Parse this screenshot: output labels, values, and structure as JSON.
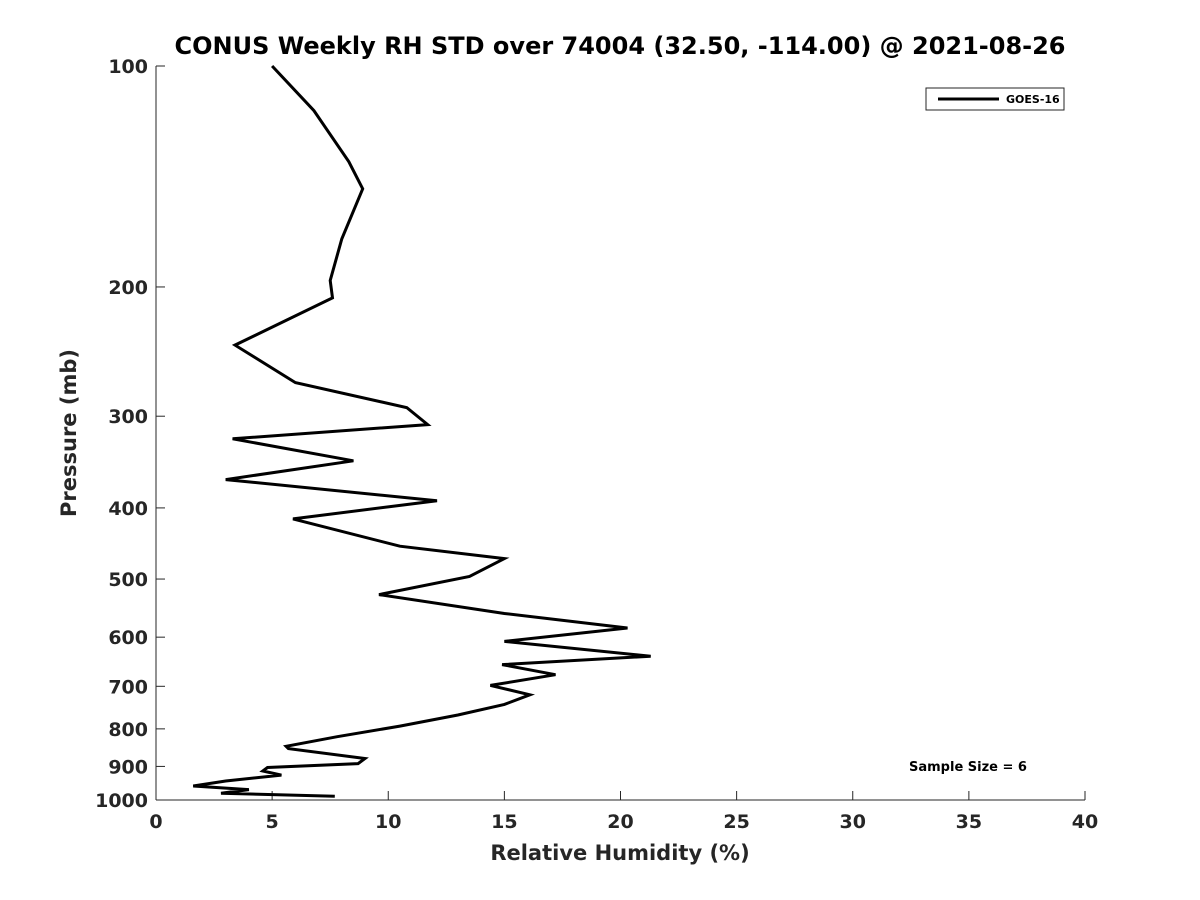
{
  "chart_data": {
    "type": "line",
    "title": "CONUS Weekly RH STD over 74004 (32.50, -114.00) @ 2021-08-26",
    "xlabel": "Relative Humidity (%)",
    "ylabel": "Pressure (mb)",
    "xlim": [
      0,
      40
    ],
    "ylim": [
      100,
      1000
    ],
    "y_scale": "log",
    "y_reversed": true,
    "grid": false,
    "x_ticks": [
      0,
      5,
      10,
      15,
      20,
      25,
      30,
      35,
      40
    ],
    "y_ticks": [
      100,
      200,
      300,
      400,
      500,
      600,
      700,
      800,
      900,
      1000
    ],
    "legend_position": "top-right",
    "series": [
      {
        "name": "GOES-16",
        "color": "#000000",
        "x": [
          5.0,
          6.8,
          8.3,
          8.9,
          8.0,
          7.5,
          7.6,
          3.4,
          6.0,
          10.8,
          11.7,
          3.3,
          8.5,
          3.0,
          12.1,
          5.9,
          10.5,
          15.0,
          13.5,
          9.6,
          15.0,
          20.3,
          15.0,
          21.3,
          14.9,
          17.2,
          14.4,
          16.1,
          15.0,
          13.0,
          10.5,
          7.8,
          5.6,
          5.7,
          9.0,
          8.7,
          4.8,
          4.6,
          5.4,
          3.0,
          1.6,
          4.0,
          2.8,
          7.7
        ],
        "y": [
          100,
          115,
          135,
          147,
          172,
          196,
          207,
          240,
          270,
          292,
          308,
          322,
          345,
          366,
          391,
          414,
          451,
          469,
          496,
          525,
          557,
          583,
          608,
          637,
          654,
          675,
          698,
          719,
          741,
          766,
          793,
          820,
          845,
          851,
          878,
          892,
          903,
          913,
          925,
          942,
          957,
          968,
          979,
          988
        ]
      }
    ],
    "annotations": [
      {
        "text": "Sample Size = 6",
        "position": "bottom-right"
      }
    ]
  }
}
